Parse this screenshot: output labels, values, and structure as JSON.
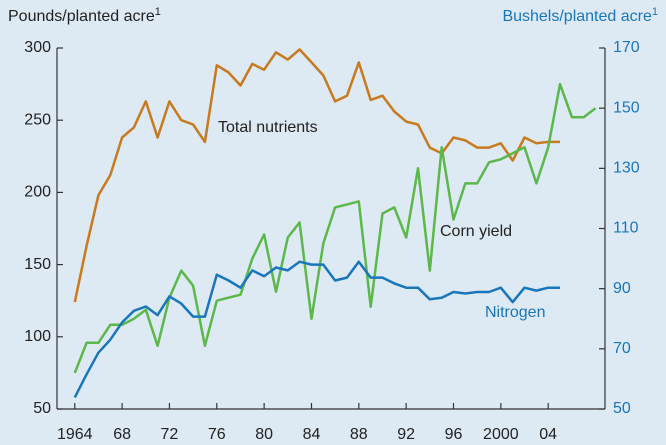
{
  "chart_data": {
    "type": "line",
    "ylabel": {
      "text": "Pounds/planted acre",
      "sup": "1"
    },
    "y2label": {
      "text": "Bushels/planted acre",
      "sup": "1"
    },
    "x": [
      1964,
      1965,
      1966,
      1967,
      1968,
      1969,
      1970,
      1971,
      1972,
      1973,
      1974,
      1975,
      1976,
      1977,
      1978,
      1979,
      1980,
      1981,
      1982,
      1983,
      1984,
      1985,
      1986,
      1987,
      1988,
      1989,
      1990,
      1991,
      1992,
      1993,
      1994,
      1995,
      1996,
      1997,
      1998,
      1999,
      2000,
      2001,
      2002,
      2003,
      2004,
      2005,
      2006,
      2007,
      2008
    ],
    "xlim": [
      1962.5,
      2008.8
    ],
    "xticks": [
      1964,
      {
        "value": 1968,
        "label": "68"
      },
      {
        "value": 1972,
        "label": "72"
      },
      {
        "value": 1976,
        "label": "76"
      },
      {
        "value": 1980,
        "label": "80"
      },
      {
        "value": 1984,
        "label": "84"
      },
      {
        "value": 1988,
        "label": "88"
      },
      {
        "value": 1992,
        "label": "92"
      },
      {
        "value": 1996,
        "label": "96"
      },
      2000,
      {
        "value": 2004,
        "label": "04"
      }
    ],
    "ylim": [
      50,
      300
    ],
    "yticks": [
      50,
      100,
      150,
      200,
      250,
      300
    ],
    "y2lim": [
      50,
      170
    ],
    "y2ticks": [
      50,
      70,
      90,
      110,
      130,
      150,
      170
    ],
    "y2color": "#1a76bb",
    "series": [
      {
        "name": "Total nutrients",
        "color": "#c87a1e",
        "values": [
          124,
          163,
          198,
          212,
          238,
          245,
          263,
          238,
          263,
          250,
          247,
          235,
          288,
          283,
          274,
          289,
          285,
          297,
          292,
          299,
          290,
          281,
          263,
          267,
          290,
          264,
          267,
          256,
          249,
          247,
          231,
          227,
          238,
          236,
          231,
          231,
          234,
          222,
          238,
          234,
          235,
          235,
          null,
          null,
          null
        ]
      },
      {
        "name": "Corn yield",
        "color": "#5cb84a",
        "axis": "y2",
        "values": [
          62,
          72,
          72,
          78,
          78,
          80,
          83,
          71,
          87,
          96,
          91,
          71,
          86,
          87,
          88,
          100,
          108,
          89,
          107,
          112,
          80,
          105,
          117,
          118,
          119,
          84,
          115,
          117,
          107,
          130,
          96,
          137,
          113,
          125,
          125,
          132,
          133,
          135,
          137,
          125,
          137,
          158,
          147,
          147,
          150
        ]
      },
      {
        "name": "Nitrogen",
        "color": "#1a76bb",
        "values": [
          58,
          74,
          89,
          98,
          110,
          118,
          121,
          115,
          128,
          123,
          114,
          114,
          143,
          139,
          134,
          146,
          142,
          148,
          146,
          152,
          150,
          150,
          139,
          141,
          152,
          141,
          141,
          137,
          134,
          134,
          126,
          127,
          131,
          130,
          131,
          131,
          134,
          124,
          134,
          132,
          134,
          134,
          null,
          null,
          null
        ]
      }
    ]
  }
}
